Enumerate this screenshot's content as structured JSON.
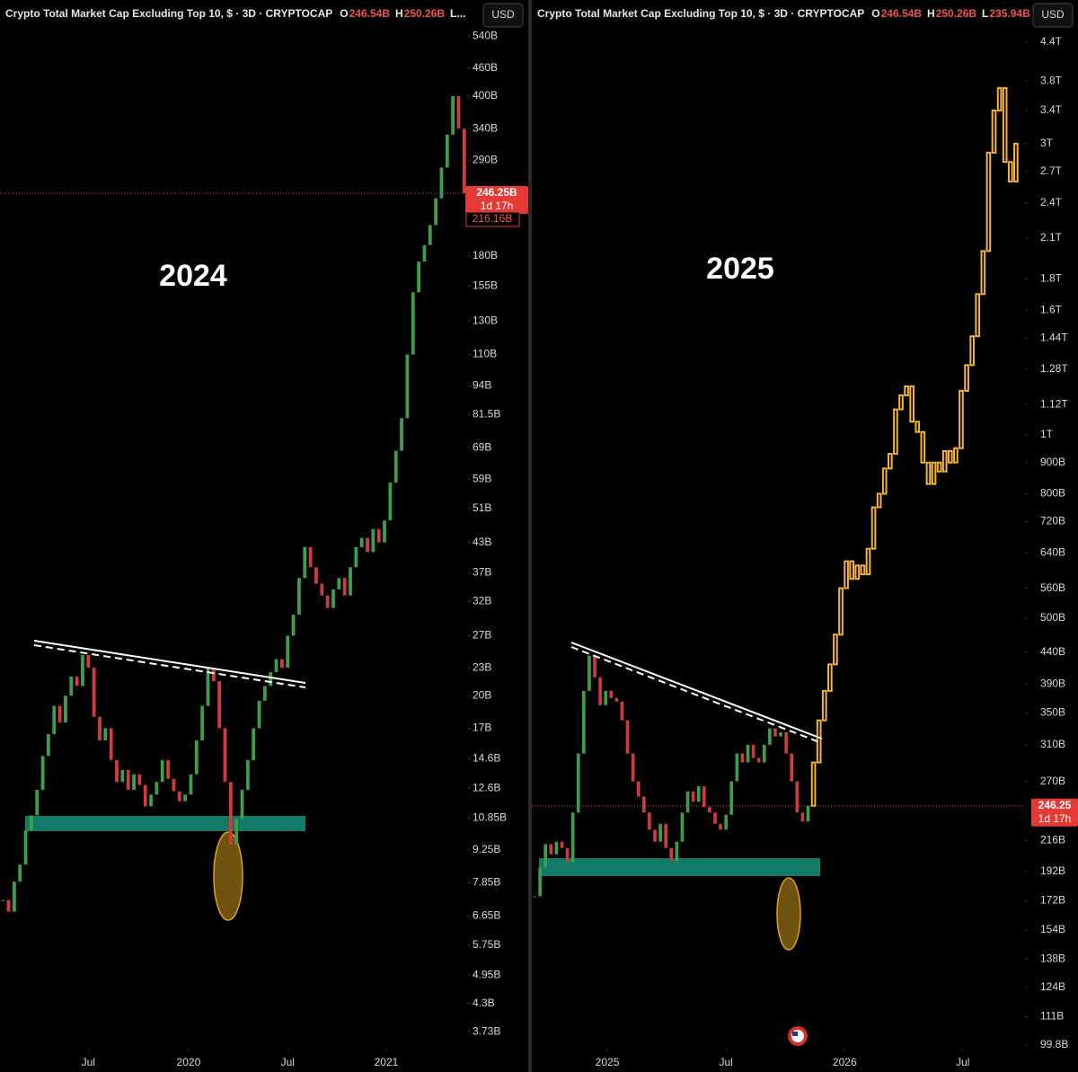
{
  "chart_data": [
    {
      "type": "candlestick",
      "title": "Crypto Total Market Cap Excluding Top 10, $ · 3D · CRYPTOCAP",
      "ohlc": [
        "O",
        "246.54B",
        "H",
        "250.26B",
        "L..."
      ],
      "currency": "USD",
      "annotation": "2024",
      "log_scale": true,
      "colors": {
        "up": "#3f9e4a",
        "down": "#d23b3b"
      },
      "ylim": [
        3.46,
        560
      ],
      "xlim": [
        -0.5,
        81.5
      ],
      "yticks": [
        {
          "value": 540,
          "label": "540B"
        },
        {
          "value": 460,
          "label": "460B"
        },
        {
          "value": 400,
          "label": "400B"
        },
        {
          "value": 340,
          "label": "340B"
        },
        {
          "value": 290,
          "label": "290B"
        },
        {
          "value": 180,
          "label": "180B"
        },
        {
          "value": 155,
          "label": "155B"
        },
        {
          "value": 130,
          "label": "130B"
        },
        {
          "value": 110,
          "label": "110B"
        },
        {
          "value": 94,
          "label": "94B"
        },
        {
          "value": 81.5,
          "label": "81.5B"
        },
        {
          "value": 69,
          "label": "69B"
        },
        {
          "value": 59,
          "label": "59B"
        },
        {
          "value": 51,
          "label": "51B"
        },
        {
          "value": 43,
          "label": "43B"
        },
        {
          "value": 37,
          "label": "37B"
        },
        {
          "value": 32,
          "label": "32B"
        },
        {
          "value": 27,
          "label": "27B"
        },
        {
          "value": 23,
          "label": "23B"
        },
        {
          "value": 20,
          "label": "20B"
        },
        {
          "value": 17,
          "label": "17B"
        },
        {
          "value": 14.6,
          "label": "14.6B"
        },
        {
          "value": 12.6,
          "label": "12.6B"
        },
        {
          "value": 10.85,
          "label": "10.85B"
        },
        {
          "value": 9.25,
          "label": "9.25B"
        },
        {
          "value": 7.85,
          "label": "7.85B"
        },
        {
          "value": 6.65,
          "label": "6.65B"
        },
        {
          "value": 5.75,
          "label": "5.75B"
        },
        {
          "value": 4.95,
          "label": "4.95B"
        },
        {
          "value": 4.3,
          "label": "4.3B"
        },
        {
          "value": 3.73,
          "label": "3.73B"
        }
      ],
      "xticks": [
        {
          "value": 15,
          "label": "Jul"
        },
        {
          "value": 32.6,
          "label": "2020"
        },
        {
          "value": 50,
          "label": "Jul"
        },
        {
          "value": 67.3,
          "label": "2021"
        }
      ],
      "values": [
        7.2,
        6.8,
        7.9,
        8.6,
        10.2,
        11,
        12.5,
        14.8,
        16.5,
        19,
        17.5,
        20,
        22,
        21,
        24.5,
        23,
        18,
        16,
        17,
        14.5,
        13,
        13.8,
        12.5,
        13.5,
        12.8,
        11.5,
        12.2,
        13,
        14.5,
        13.2,
        12.4,
        11.8,
        12.2,
        13.5,
        16,
        19,
        23,
        21.5,
        17,
        13,
        9.5,
        10.8,
        12.5,
        14.5,
        17,
        19.5,
        21,
        22.5,
        24,
        23,
        27,
        30,
        36,
        42,
        38,
        35,
        33,
        31,
        34,
        36,
        33,
        38,
        42,
        44,
        41,
        46,
        43,
        48,
        58,
        68,
        80,
        110,
        150,
        175,
        190,
        210,
        240,
        280,
        330,
        400,
        340,
        246.25
      ],
      "last_price": {
        "value": 246.25,
        "label": "246.25B"
      },
      "countdown": "1d 17h",
      "low_tag": {
        "value": 216.16,
        "label": "216.16B"
      }
    },
    {
      "type": "candlestick",
      "title": "Crypto Total Market Cap Excluding Top 10, $ · 3D · CRYPTOCAP",
      "ohlc": [
        "O",
        "246.54B",
        "H",
        "250.26B",
        "L",
        "235.94B"
      ],
      "currency": "USD",
      "annotation": "2025",
      "log_scale": true,
      "colors": {
        "up": "#3f9e4a",
        "down": "#d23b3b",
        "projection": "#f5b433"
      },
      "ylim": [
        99.1,
        4630
      ],
      "xlim": [
        -0.5,
        89.5
      ],
      "yticks": [
        {
          "value": 4400,
          "label": "4.4T"
        },
        {
          "value": 3800,
          "label": "3.8T"
        },
        {
          "value": 3400,
          "label": "3.4T"
        },
        {
          "value": 3000,
          "label": "3T"
        },
        {
          "value": 2700,
          "label": "2.7T"
        },
        {
          "value": 2400,
          "label": "2.4T"
        },
        {
          "value": 2100,
          "label": "2.1T"
        },
        {
          "value": 1800,
          "label": "1.8T"
        },
        {
          "value": 1600,
          "label": "1.6T"
        },
        {
          "value": 1440,
          "label": "1.44T"
        },
        {
          "value": 1280,
          "label": "1.28T"
        },
        {
          "value": 1120,
          "label": "1.12T"
        },
        {
          "value": 1000,
          "label": "1T"
        },
        {
          "value": 900,
          "label": "900B"
        },
        {
          "value": 800,
          "label": "800B"
        },
        {
          "value": 720,
          "label": "720B"
        },
        {
          "value": 640,
          "label": "640B"
        },
        {
          "value": 560,
          "label": "560B"
        },
        {
          "value": 500,
          "label": "500B"
        },
        {
          "value": 440,
          "label": "440B"
        },
        {
          "value": 390,
          "label": "390B"
        },
        {
          "value": 350,
          "label": "350B"
        },
        {
          "value": 310,
          "label": "310B"
        },
        {
          "value": 270,
          "label": "270B"
        },
        {
          "value": 216,
          "label": "216B"
        },
        {
          "value": 192,
          "label": "192B"
        },
        {
          "value": 172,
          "label": "172B"
        },
        {
          "value": 154,
          "label": "154B"
        },
        {
          "value": 138,
          "label": "138B"
        },
        {
          "value": 124,
          "label": "124B"
        },
        {
          "value": 111,
          "label": "111B"
        },
        {
          "value": 99.8,
          "label": "99.8B"
        }
      ],
      "xticks": [
        {
          "value": 13.3,
          "label": "2025"
        },
        {
          "value": 35,
          "label": "Jul"
        },
        {
          "value": 56.7,
          "label": "2026"
        },
        {
          "value": 78.3,
          "label": "Jul"
        }
      ],
      "values": [
        175,
        195,
        213,
        205,
        215,
        210,
        199,
        240,
        300,
        380,
        434,
        400,
        360,
        380,
        370,
        365,
        340,
        300,
        270,
        255,
        240,
        225,
        215,
        230,
        210,
        200,
        215,
        240,
        260,
        250,
        265,
        245,
        240,
        230,
        225,
        238,
        270,
        300,
        290,
        310,
        295,
        290,
        310,
        330,
        320,
        325,
        300,
        270,
        240,
        232,
        246.25
      ],
      "projection": [
        290,
        340,
        380,
        420,
        470,
        560,
        620,
        580,
        610,
        590,
        650,
        760,
        800,
        880,
        930,
        1100,
        1160,
        1200,
        1050,
        1010,
        900,
        830,
        900,
        870,
        940,
        900,
        950,
        1180,
        1300,
        1450,
        1700,
        2000,
        2900,
        3400,
        3700,
        2800,
        2600,
        3000
      ],
      "last_price": {
        "value": 246.25,
        "label": "246.25"
      },
      "countdown": "1d 17h"
    }
  ]
}
